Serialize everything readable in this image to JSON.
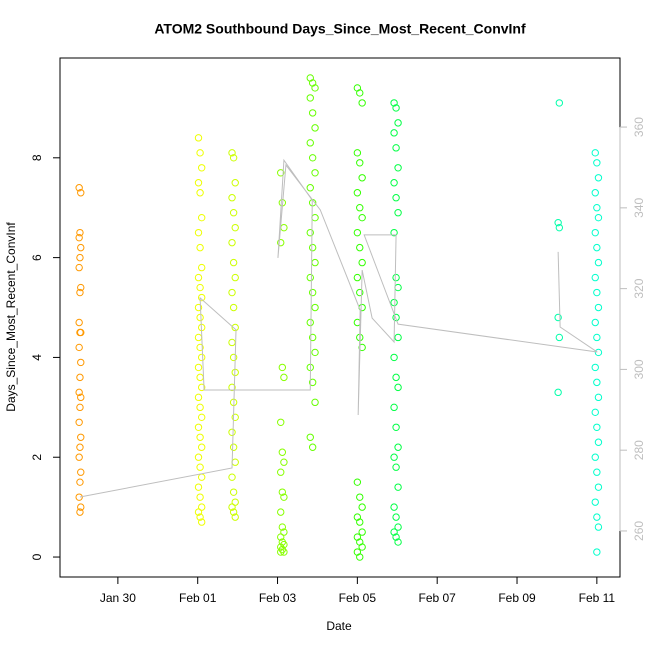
{
  "chart_data": {
    "type": "scatter",
    "title": "ATOM2 Southbound Days_Since_Most_Recent_ConvInf",
    "x_label": "Date",
    "y_label": "Days_Since_Most_Recent_ConvInf",
    "xlim": [
      -2.45,
      11.58
    ],
    "xticks": [
      {
        "value": -1,
        "label": "Jan 30"
      },
      {
        "value": 1,
        "label": "Feb 01"
      },
      {
        "value": 3,
        "label": "Feb 03"
      },
      {
        "value": 5,
        "label": "Feb 05"
      },
      {
        "value": 7,
        "label": "Feb 07"
      },
      {
        "value": 9,
        "label": "Feb 09"
      },
      {
        "value": 11,
        "label": "Feb 11"
      }
    ],
    "ylim": [
      -0.4,
      10.0
    ],
    "yticks": [
      0,
      2,
      4,
      6,
      8
    ],
    "y2lim": [
      248.6,
      377.1
    ],
    "y2ticks": [
      260,
      280,
      300,
      320,
      340,
      360
    ],
    "series": [
      {
        "color": "#ff9900",
        "x": [
          -1.97,
          -1.93,
          -1.95,
          -1.97,
          -1.93,
          -1.95,
          -1.97,
          -1.93,
          -1.95,
          -1.97,
          -1.93,
          -1.95,
          -1.97,
          -1.93,
          -1.95,
          -1.97,
          -1.93,
          -1.95,
          -1.97,
          -1.93,
          -1.95,
          -1.97,
          -1.93,
          -1.95,
          -1.97,
          -1.93,
          -1.95
        ],
        "values": [
          7.4,
          7.3,
          6.5,
          6.4,
          6.2,
          6.0,
          5.8,
          5.4,
          5.3,
          4.7,
          4.5,
          4.5,
          4.2,
          3.9,
          3.6,
          3.3,
          3.2,
          3.0,
          2.7,
          2.4,
          2.2,
          2.0,
          1.7,
          1.5,
          1.2,
          1.0,
          0.9
        ]
      },
      {
        "color": "#eeff00",
        "x": [
          1.02,
          1.06,
          1.1,
          1.02,
          1.06,
          1.1,
          1.02,
          1.06,
          1.1,
          1.02,
          1.06,
          1.1,
          1.02,
          1.06,
          1.1,
          1.02,
          1.06,
          1.1,
          1.02,
          1.06,
          1.1,
          1.02,
          1.06,
          1.1,
          1.02,
          1.06,
          1.1,
          1.02,
          1.06,
          1.1,
          1.02,
          1.06,
          1.1,
          1.02,
          1.06,
          1.1
        ],
        "values": [
          8.4,
          8.1,
          7.8,
          7.5,
          7.3,
          6.8,
          6.5,
          6.2,
          5.8,
          5.6,
          5.4,
          5.2,
          5.0,
          4.8,
          4.6,
          4.4,
          4.2,
          4.0,
          3.8,
          3.6,
          3.4,
          3.2,
          3.0,
          2.8,
          2.6,
          2.4,
          2.2,
          2.0,
          1.8,
          1.6,
          1.4,
          1.2,
          1.0,
          0.9,
          0.8,
          0.7
        ]
      },
      {
        "color": "#ccff00",
        "x": [
          1.86,
          1.9,
          1.94,
          1.86,
          1.9,
          1.94,
          1.86,
          1.9,
          1.94,
          1.86,
          1.9,
          1.94,
          1.86,
          1.9,
          1.94,
          1.86,
          1.9,
          1.94,
          1.86,
          1.9,
          1.94,
          1.86,
          1.9,
          1.94,
          1.86,
          1.9,
          1.94
        ],
        "values": [
          8.1,
          8.0,
          7.5,
          7.2,
          6.9,
          6.6,
          6.3,
          5.9,
          5.6,
          5.3,
          5.0,
          4.6,
          4.3,
          4.0,
          3.7,
          3.4,
          3.1,
          2.8,
          2.5,
          2.2,
          1.9,
          1.6,
          1.3,
          1.1,
          1.0,
          0.9,
          0.8
        ]
      },
      {
        "color": "#88ff00",
        "x": [
          3.08,
          3.12,
          3.16,
          3.08,
          3.12,
          3.16,
          3.08,
          3.12,
          3.16,
          3.08,
          3.12,
          3.16,
          3.08,
          3.12,
          3.16,
          3.08,
          3.12,
          3.16,
          3.08,
          3.12,
          3.16,
          3.08
        ],
        "values": [
          7.7,
          7.1,
          6.6,
          6.3,
          3.8,
          3.6,
          2.7,
          2.1,
          1.9,
          1.7,
          1.3,
          1.2,
          0.9,
          0.6,
          0.5,
          0.4,
          0.3,
          0.25,
          0.2,
          0.15,
          0.1,
          0.1
        ]
      },
      {
        "color": "#66ff00",
        "x": [
          3.82,
          3.88,
          3.94,
          3.82,
          3.88,
          3.94,
          3.82,
          3.88,
          3.94,
          3.82,
          3.88,
          3.94,
          3.82,
          3.88,
          3.94,
          3.82,
          3.88,
          3.94,
          3.82,
          3.88,
          3.94,
          3.82,
          3.88,
          3.94,
          3.82,
          3.88
        ],
        "values": [
          9.6,
          9.5,
          9.4,
          9.2,
          8.9,
          8.6,
          8.3,
          8.0,
          7.7,
          7.4,
          7.1,
          6.8,
          6.5,
          6.2,
          5.9,
          5.6,
          5.3,
          5.0,
          4.7,
          4.4,
          4.1,
          3.8,
          3.5,
          3.1,
          2.4,
          2.2
        ]
      },
      {
        "color": "#33ff00",
        "x": [
          5.0,
          5.06,
          5.12,
          5.0,
          5.06,
          5.12,
          5.0,
          5.06,
          5.12,
          5.0,
          5.06,
          5.12,
          5.0,
          5.06,
          5.12,
          5.0,
          5.06,
          5.12,
          5.0,
          5.06,
          5.12,
          5.0,
          5.06,
          5.12,
          5.0,
          5.06,
          5.12,
          5.0,
          5.06
        ],
        "values": [
          9.4,
          9.3,
          9.1,
          8.1,
          7.9,
          7.6,
          7.3,
          7.0,
          6.8,
          6.5,
          6.2,
          5.9,
          5.6,
          5.3,
          5.0,
          4.7,
          4.4,
          4.2,
          1.5,
          1.2,
          1.0,
          0.8,
          0.7,
          0.5,
          0.4,
          0.3,
          0.2,
          0.1,
          0.0
        ]
      },
      {
        "color": "#00ff44",
        "x": [
          5.92,
          5.97,
          6.02,
          5.92,
          5.97,
          6.02,
          5.92,
          5.97,
          6.02,
          5.92,
          5.97,
          6.02,
          5.92,
          5.97,
          6.02,
          5.92,
          5.97,
          6.02,
          5.92,
          5.97,
          6.02,
          5.92,
          5.97,
          6.02,
          5.92,
          5.97,
          6.02,
          5.92,
          5.97,
          6.02
        ],
        "values": [
          9.1,
          9.0,
          8.7,
          8.5,
          8.2,
          7.8,
          7.5,
          7.2,
          6.9,
          6.5,
          5.6,
          5.4,
          5.1,
          4.8,
          4.4,
          4.0,
          3.6,
          3.4,
          3.0,
          2.6,
          2.2,
          2.0,
          1.8,
          1.4,
          1.0,
          0.8,
          0.6,
          0.5,
          0.4,
          0.3
        ]
      },
      {
        "color": "#00ffaa",
        "x": [
          10.06,
          10.03,
          10.06,
          10.03,
          10.06,
          10.03
        ],
        "values": [
          9.1,
          6.7,
          6.6,
          4.8,
          4.4,
          3.3
        ]
      },
      {
        "color": "#00ffcc",
        "x": [
          10.96,
          11.0,
          11.04,
          10.96,
          11.0,
          11.04,
          10.96,
          11.0,
          11.04,
          10.96,
          11.0,
          11.04,
          10.96,
          11.0,
          11.04,
          10.96,
          11.0,
          11.04,
          10.96,
          11.0,
          11.04,
          10.96,
          11.0,
          11.04,
          10.96,
          11.0,
          11.04,
          11.0
        ],
        "values": [
          8.1,
          7.9,
          7.6,
          7.3,
          7.0,
          6.8,
          6.5,
          6.2,
          5.9,
          5.6,
          5.3,
          5.0,
          4.7,
          4.4,
          4.1,
          3.8,
          3.5,
          3.2,
          2.9,
          2.6,
          2.3,
          2.0,
          1.7,
          1.4,
          1.1,
          0.8,
          0.6,
          0.1
        ]
      },
      {
        "type": "line",
        "axis": "y2",
        "color": "#bebebe",
        "x": [
          -1.95,
          1.86,
          1.96,
          1.06,
          1.16,
          3.82,
          3.87,
          3.16,
          3.01,
          3.21,
          4.07,
          5.07,
          5.02,
          5.12,
          5.37,
          5.92,
          5.97,
          5.17,
          6.02,
          11.01,
          10.08,
          10.03
        ],
        "values": [
          268.4,
          275.6,
          309.8,
          317.7,
          294.9,
          294.9,
          341.9,
          351.8,
          327.6,
          350.6,
          339.5,
          314.7,
          288.7,
          324.6,
          312.7,
          306.8,
          333.3,
          333.3,
          311.2,
          304.3,
          310.5,
          329.1
        ]
      }
    ]
  }
}
